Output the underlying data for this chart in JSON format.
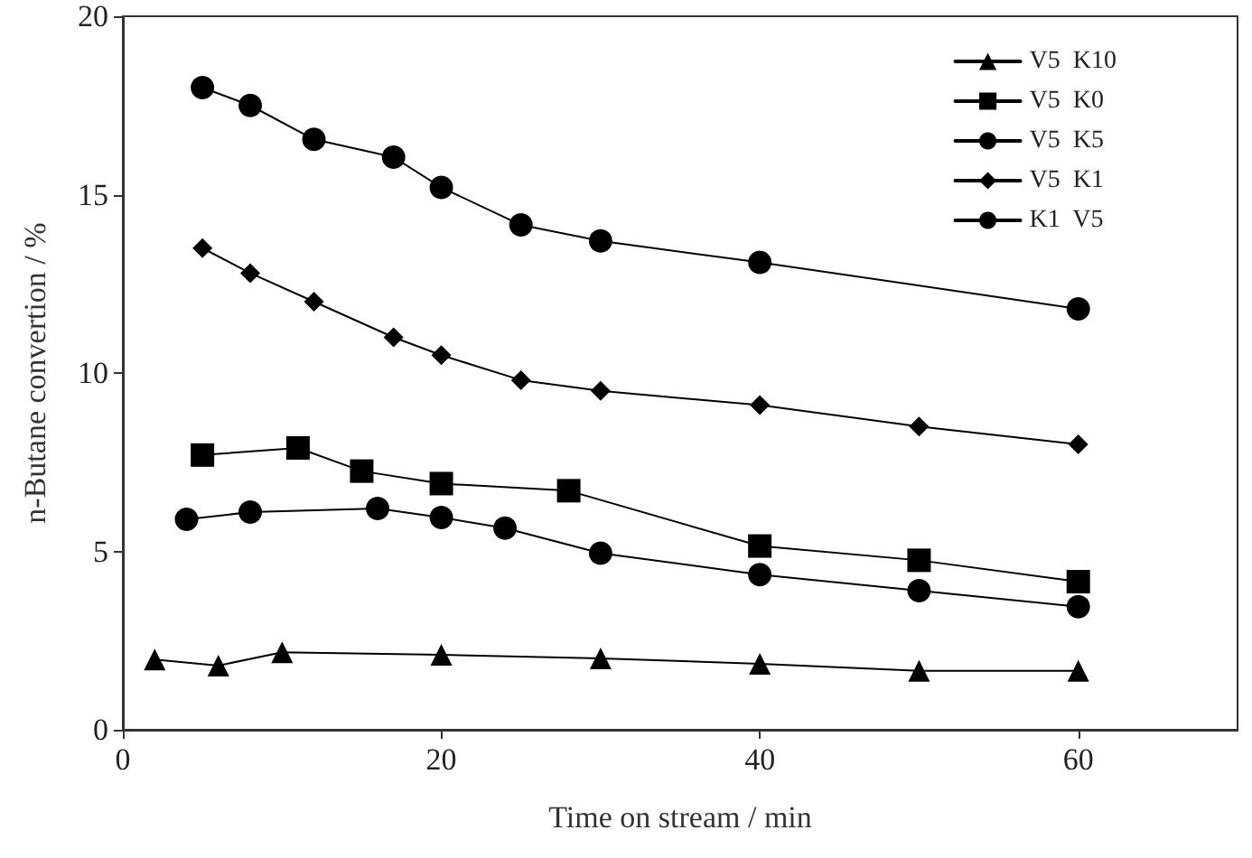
{
  "chart_data": {
    "type": "line",
    "xlabel": "Time on stream / min",
    "ylabel": "n-Butane convertion / %",
    "xlim": [
      0,
      70
    ],
    "xticks": [
      0,
      20,
      40,
      60
    ],
    "ylim": [
      0,
      20
    ],
    "yticks": [
      0,
      5,
      10,
      15,
      20
    ],
    "grid": false,
    "legend": "top right",
    "line_style": "solid",
    "series": [
      {
        "name": "V5  K10",
        "color": "#000000",
        "marker": "triangle",
        "x": [
          2,
          6,
          10,
          20,
          30,
          40,
          50,
          60
        ],
        "values": [
          1.97,
          1.8,
          2.17,
          2.1,
          2.0,
          1.85,
          1.65,
          1.65
        ]
      },
      {
        "name": "V5  K0",
        "color": "#000000",
        "marker": "square",
        "x": [
          5,
          11,
          15,
          20,
          28,
          40,
          50,
          60
        ],
        "values": [
          7.7,
          7.9,
          7.25,
          6.9,
          6.7,
          5.15,
          4.75,
          4.15
        ]
      },
      {
        "name": "V5  K5",
        "color": "#000000",
        "marker": "circle",
        "x": [
          4,
          8,
          16,
          20,
          24,
          30,
          40,
          50,
          60
        ],
        "values": [
          5.9,
          6.1,
          6.2,
          5.95,
          5.65,
          4.95,
          4.35,
          3.9,
          3.45
        ]
      },
      {
        "name": "V5  K1",
        "color": "#000000",
        "marker": "diamond",
        "x": [
          5,
          8,
          12,
          17,
          20,
          25,
          30,
          40,
          50,
          60
        ],
        "values": [
          13.5,
          12.8,
          12.0,
          11.0,
          10.5,
          9.8,
          9.5,
          9.1,
          8.5,
          8.0
        ]
      },
      {
        "name": "K1  V5",
        "color": "#000000",
        "marker": "circle",
        "x": [
          5,
          8,
          12,
          17,
          20,
          25,
          30,
          40,
          60
        ],
        "values": [
          18.0,
          17.5,
          16.55,
          16.05,
          15.2,
          14.15,
          13.7,
          13.1,
          11.8
        ]
      }
    ]
  }
}
